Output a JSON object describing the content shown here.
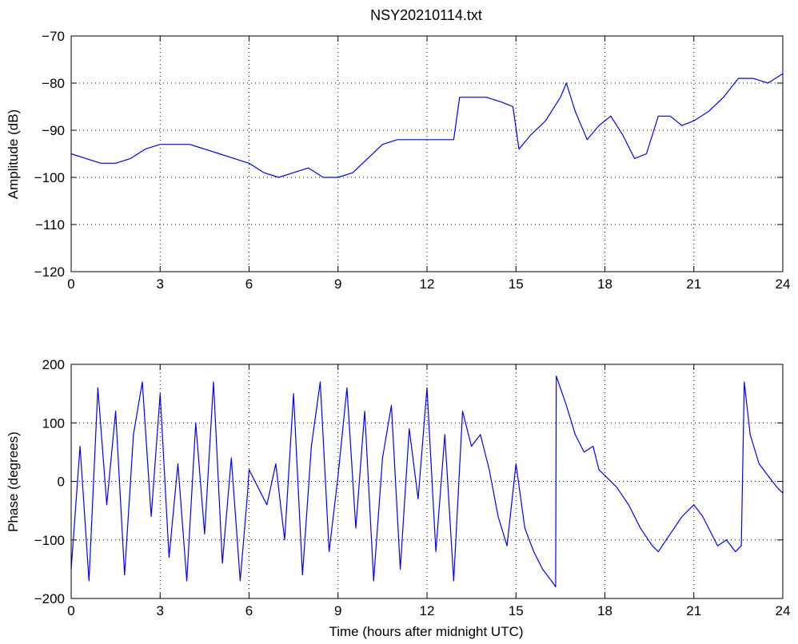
{
  "chart_data": [
    {
      "type": "line",
      "title": "NSY20210114.txt",
      "xlabel": "",
      "ylabel": "Amplitude (dB)",
      "xlim": [
        0,
        24
      ],
      "ylim": [
        -120,
        -70
      ],
      "xticks": [
        "0",
        "3",
        "6",
        "9",
        "12",
        "15",
        "18",
        "21",
        "24"
      ],
      "yticks": [
        "−120",
        "−110",
        "−100",
        "−90",
        "−80",
        "−70"
      ],
      "grid": true,
      "color": "#0000ff",
      "x": [
        0,
        0.5,
        1,
        1.5,
        2,
        2.5,
        3,
        3.5,
        4,
        4.5,
        5,
        5.5,
        6,
        6.5,
        7,
        7.5,
        8,
        8.5,
        9,
        9.5,
        10,
        10.5,
        11,
        11.5,
        12,
        12.5,
        12.9,
        13.1,
        13.5,
        14,
        14.5,
        14.9,
        15.1,
        15.5,
        16,
        16.5,
        16.7,
        17,
        17.4,
        17.8,
        18.2,
        18.6,
        19,
        19.4,
        19.8,
        20.2,
        20.6,
        21,
        21.5,
        22,
        22.5,
        23,
        23.5,
        24
      ],
      "y": [
        -95,
        -96,
        -97,
        -97,
        -96,
        -94,
        -93,
        -93,
        -93,
        -94,
        -95,
        -96,
        -97,
        -99,
        -100,
        -99,
        -98,
        -100,
        -100,
        -99,
        -96,
        -93,
        -92,
        -92,
        -92,
        -92,
        -92,
        -83,
        -83,
        -83,
        -84,
        -85,
        -94,
        -91,
        -88,
        -83,
        -80,
        -86,
        -92,
        -89,
        -87,
        -91,
        -96,
        -95,
        -87,
        -87,
        -89,
        -88,
        -86,
        -83,
        -79,
        -79,
        -80,
        -78
      ]
    },
    {
      "type": "line",
      "title": "",
      "xlabel": "Time (hours after midnight UTC)",
      "ylabel": "Phase (degrees)",
      "xlim": [
        0,
        24
      ],
      "ylim": [
        -200,
        200
      ],
      "xticks": [
        "0",
        "3",
        "6",
        "9",
        "12",
        "15",
        "18",
        "21",
        "24"
      ],
      "yticks": [
        "−200",
        "−100",
        "0",
        "100",
        "200"
      ],
      "grid": true,
      "color": "#0000ff",
      "x": [
        0,
        0.3,
        0.6,
        0.9,
        1.2,
        1.5,
        1.8,
        2.1,
        2.4,
        2.7,
        3.0,
        3.3,
        3.6,
        3.9,
        4.2,
        4.5,
        4.8,
        5.1,
        5.4,
        5.7,
        5.95,
        6.0,
        6.3,
        6.6,
        6.9,
        7.2,
        7.5,
        7.8,
        8.1,
        8.4,
        8.7,
        9.0,
        9.3,
        9.6,
        9.9,
        10.2,
        10.5,
        10.8,
        11.1,
        11.4,
        11.7,
        12.0,
        12.3,
        12.6,
        12.9,
        13.2,
        13.5,
        13.8,
        14.1,
        14.4,
        14.7,
        15.0,
        15.3,
        15.6,
        15.9,
        16.2,
        16.34,
        16.36,
        16.7,
        17.0,
        17.3,
        17.6,
        17.8,
        18.0,
        18.4,
        18.8,
        19.2,
        19.6,
        19.8,
        20.2,
        20.6,
        21.0,
        21.3,
        21.6,
        21.8,
        22.1,
        22.4,
        22.6,
        22.7,
        22.9,
        23.2,
        23.5,
        23.8,
        24
      ],
      "y": [
        -150,
        60,
        -170,
        160,
        -40,
        120,
        -160,
        80,
        170,
        -60,
        150,
        -130,
        30,
        -170,
        100,
        -90,
        170,
        -140,
        40,
        -170,
        -20,
        20,
        -10,
        -40,
        30,
        -100,
        150,
        -160,
        60,
        170,
        -120,
        10,
        160,
        -80,
        120,
        -170,
        40,
        130,
        -150,
        90,
        -30,
        160,
        -120,
        80,
        -170,
        120,
        60,
        80,
        20,
        -60,
        -110,
        30,
        -80,
        -120,
        -150,
        -170,
        -180,
        180,
        130,
        80,
        50,
        60,
        20,
        10,
        -10,
        -40,
        -80,
        -110,
        -120,
        -90,
        -60,
        -40,
        -60,
        -90,
        -110,
        -100,
        -120,
        -110,
        170,
        80,
        30,
        10,
        -10,
        -20
      ]
    }
  ]
}
